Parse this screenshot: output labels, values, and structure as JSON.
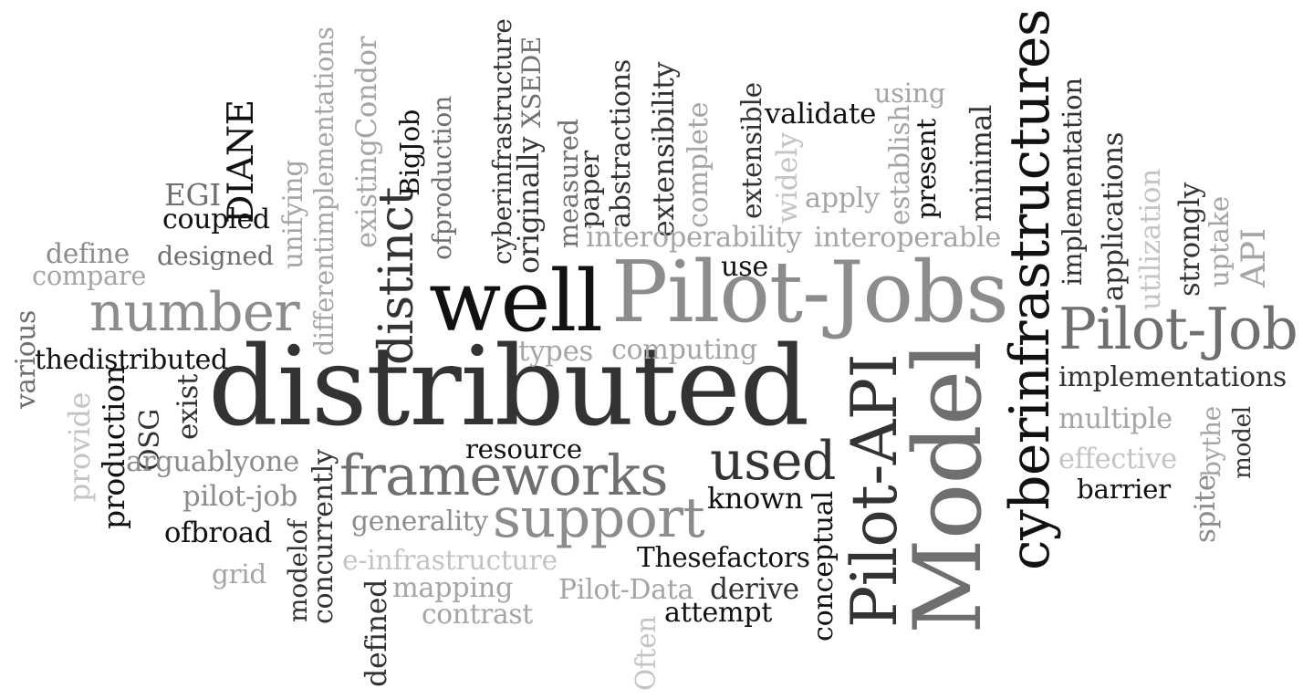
{
  "words": [
    {
      "text": "distributed",
      "color": "#333333"
    },
    {
      "text": "Pilot-Jobs",
      "color": "#8c8c8c"
    },
    {
      "text": "Model",
      "color": "#6f6f6f"
    },
    {
      "text": "well",
      "color": "#111111"
    },
    {
      "text": "cyberinfrastructures",
      "color": "#111111"
    },
    {
      "text": "Pilot-API",
      "color": "#333333"
    },
    {
      "text": "number",
      "color": "#8c8c8c"
    },
    {
      "text": "Pilot-Job",
      "color": "#6f6f6f"
    },
    {
      "text": "frameworks",
      "color": "#6f6f6f"
    },
    {
      "text": "distinct",
      "color": "#333333"
    },
    {
      "text": "used",
      "color": "#333333"
    },
    {
      "text": "support",
      "color": "#8c8c8c"
    },
    {
      "text": "implementations",
      "color": "#333333"
    },
    {
      "text": "thedistributed",
      "color": "#111111"
    },
    {
      "text": "designed",
      "color": "#6f6f6f"
    },
    {
      "text": "define",
      "color": "#8c8c8c"
    },
    {
      "text": "compare",
      "color": "#a5a5a5"
    },
    {
      "text": "coupled",
      "color": "#111111"
    },
    {
      "text": "EGI",
      "color": "#6f6f6f"
    },
    {
      "text": "DIANE",
      "color": "#111111"
    },
    {
      "text": "unifying",
      "color": "#a5a5a5"
    },
    {
      "text": "differentimplementations",
      "color": "#a5a5a5"
    },
    {
      "text": "existingCondor",
      "color": "#a5a5a5"
    },
    {
      "text": "BigJob",
      "color": "#111111"
    },
    {
      "text": "ofproduction",
      "color": "#6f6f6f"
    },
    {
      "text": "cyberinfrastructure",
      "color": "#333333"
    },
    {
      "text": "originally",
      "color": "#333333"
    },
    {
      "text": "XSEDE",
      "color": "#6f6f6f"
    },
    {
      "text": "measured",
      "color": "#6f6f6f"
    },
    {
      "text": "paper",
      "color": "#333333"
    },
    {
      "text": "abstractions",
      "color": "#333333"
    },
    {
      "text": "extensibility",
      "color": "#333333"
    },
    {
      "text": "complete",
      "color": "#a5a5a5"
    },
    {
      "text": "extensible",
      "color": "#333333"
    },
    {
      "text": "validate",
      "color": "#111111"
    },
    {
      "text": "widely",
      "color": "#c4c4c4"
    },
    {
      "text": "using",
      "color": "#a5a5a5"
    },
    {
      "text": "establish",
      "color": "#a5a5a5"
    },
    {
      "text": "present",
      "color": "#111111"
    },
    {
      "text": "minimal",
      "color": "#333333"
    },
    {
      "text": "apply",
      "color": "#a5a5a5"
    },
    {
      "text": "interoperability",
      "color": "#a5a5a5"
    },
    {
      "text": "interoperable",
      "color": "#a5a5a5"
    },
    {
      "text": "implementation",
      "color": "#333333"
    },
    {
      "text": "applications",
      "color": "#333333"
    },
    {
      "text": "utilization",
      "color": "#c4c4c4"
    },
    {
      "text": "strongly",
      "color": "#333333"
    },
    {
      "text": "uptake",
      "color": "#a5a5a5"
    },
    {
      "text": "API",
      "color": "#a5a5a5"
    },
    {
      "text": "use",
      "color": "#111111"
    },
    {
      "text": "types",
      "color": "#a5a5a5"
    },
    {
      "text": "computing",
      "color": "#a5a5a5"
    },
    {
      "text": "various",
      "color": "#6f6f6f"
    },
    {
      "text": "provide",
      "color": "#c4c4c4"
    },
    {
      "text": "production",
      "color": "#111111"
    },
    {
      "text": "OSG",
      "color": "#333333"
    },
    {
      "text": "exist",
      "color": "#333333"
    },
    {
      "text": "arguablyone",
      "color": "#8c8c8c"
    },
    {
      "text": "pilot-job",
      "color": "#8c8c8c"
    },
    {
      "text": "ofbroad",
      "color": "#111111"
    },
    {
      "text": "grid",
      "color": "#a5a5a5"
    },
    {
      "text": "modelof",
      "color": "#333333"
    },
    {
      "text": "concurrently",
      "color": "#333333"
    },
    {
      "text": "resource",
      "color": "#111111"
    },
    {
      "text": "generality",
      "color": "#8c8c8c"
    },
    {
      "text": "e-infrastructure",
      "color": "#c4c4c4"
    },
    {
      "text": "mapping",
      "color": "#a5a5a5"
    },
    {
      "text": "contrast",
      "color": "#a5a5a5"
    },
    {
      "text": "defined",
      "color": "#333333"
    },
    {
      "text": "known",
      "color": "#111111"
    },
    {
      "text": "Thesefactors",
      "color": "#111111"
    },
    {
      "text": "Pilot-Data",
      "color": "#a5a5a5"
    },
    {
      "text": "derive",
      "color": "#333333"
    },
    {
      "text": "attempt",
      "color": "#111111"
    },
    {
      "text": "Often",
      "color": "#c4c4c4"
    },
    {
      "text": "conceptual",
      "color": "#111111"
    },
    {
      "text": "multiple",
      "color": "#a5a5a5"
    },
    {
      "text": "effective",
      "color": "#c4c4c4"
    },
    {
      "text": "barrier",
      "color": "#111111"
    },
    {
      "text": "bythe",
      "color": "#a5a5a5"
    },
    {
      "text": "model",
      "color": "#333333"
    },
    {
      "text": "spite",
      "color": "#8c8c8c"
    }
  ]
}
